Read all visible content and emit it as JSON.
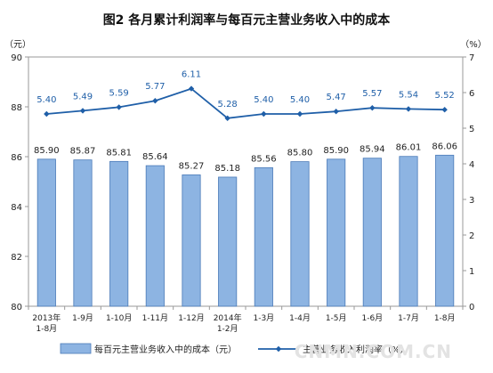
{
  "chart_data": {
    "type": "bar",
    "title": "图2 各月累计利润率与每百元主营业务收入中的成本",
    "categories": [
      "2013年\n1-8月",
      "1-9月",
      "1-10月",
      "1-11月",
      "1-12月",
      "2014年\n1-2月",
      "1-3月",
      "1-4月",
      "1-5月",
      "1-6月",
      "1-7月",
      "1-8月"
    ],
    "y_left": {
      "unit_label": "（元）",
      "ylim": [
        80,
        90
      ],
      "ticks": [
        80,
        82,
        84,
        86,
        88,
        90
      ]
    },
    "y_right": {
      "unit_label": "（%）",
      "ylim": [
        0,
        7
      ],
      "ticks": [
        0,
        1,
        2,
        3,
        4,
        5,
        6,
        7
      ]
    },
    "series": [
      {
        "name": "每百元主营业务收入中的成本（元）",
        "type": "bar",
        "axis": "left",
        "color": "#8db4e2",
        "values": [
          85.9,
          85.87,
          85.81,
          85.64,
          85.27,
          85.18,
          85.56,
          85.8,
          85.9,
          85.94,
          86.01,
          86.06
        ],
        "labels": [
          "85.90",
          "85.87",
          "85.81",
          "85.64",
          "85.27",
          "85.18",
          "85.56",
          "85.80",
          "85.90",
          "85.94",
          "86.01",
          "86.06"
        ]
      },
      {
        "name": "主营业务收入利润率（%）",
        "type": "line",
        "axis": "right",
        "color": "#1f5fa8",
        "values": [
          5.4,
          5.49,
          5.59,
          5.77,
          6.11,
          5.28,
          5.4,
          5.4,
          5.47,
          5.57,
          5.54,
          5.52
        ],
        "labels": [
          "5.40",
          "5.49",
          "5.59",
          "5.77",
          "6.11",
          "5.28",
          "5.40",
          "5.40",
          "5.47",
          "5.57",
          "5.54",
          "5.52"
        ]
      }
    ],
    "legend_position": "bottom",
    "grid": false
  },
  "watermark": "CNMN.COM.CN"
}
